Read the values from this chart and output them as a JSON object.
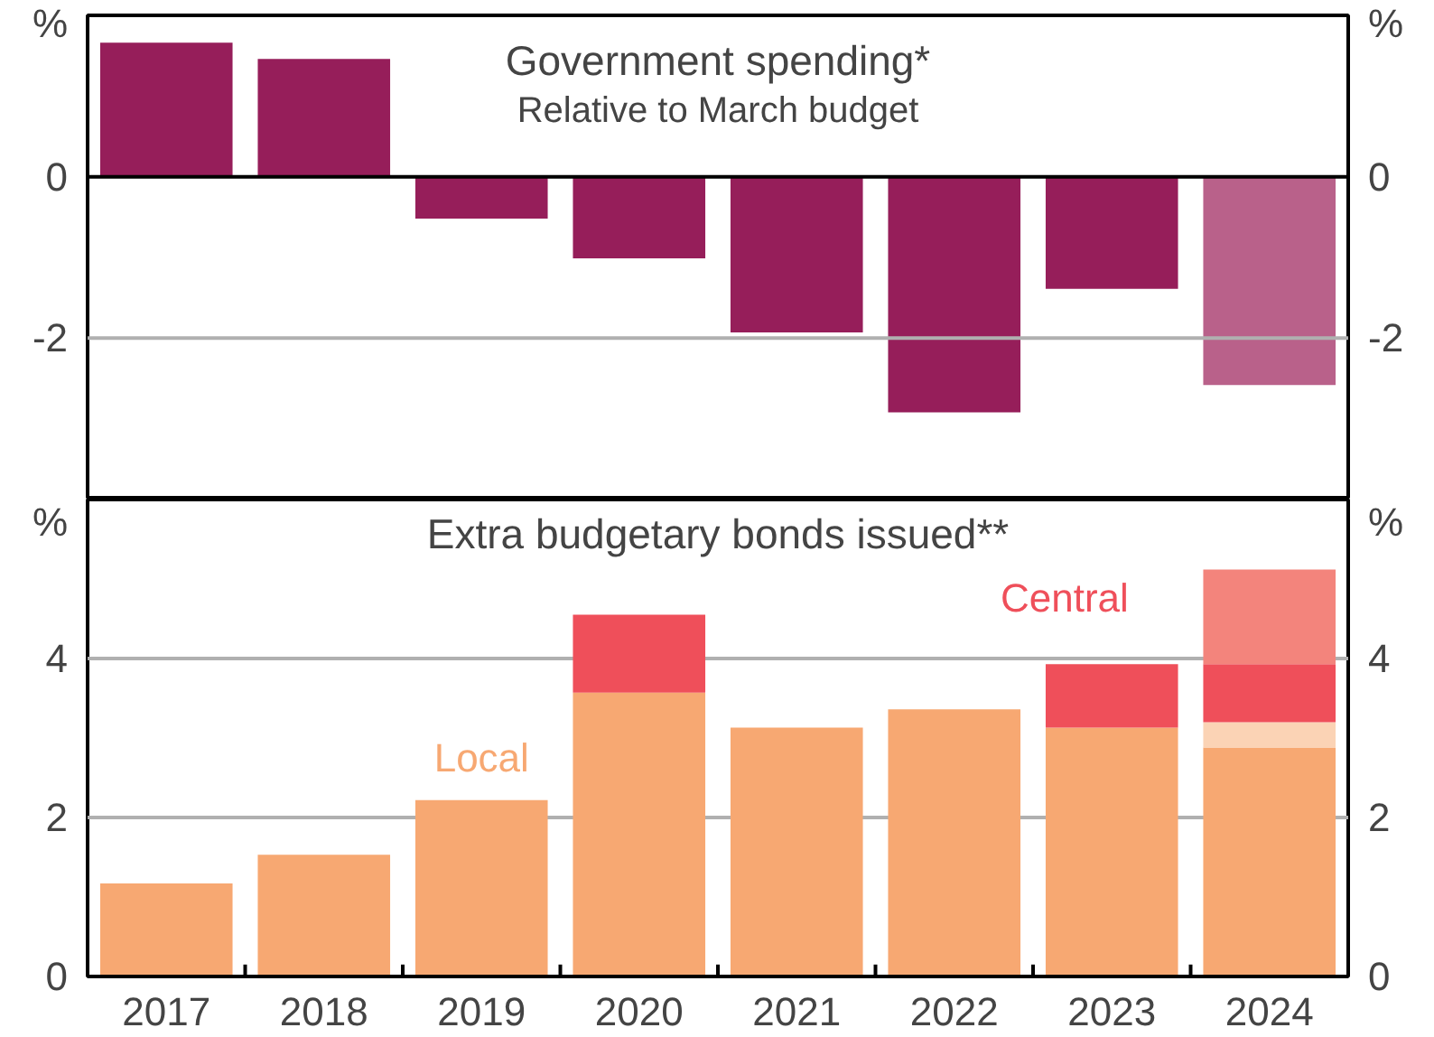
{
  "chart_data": [
    {
      "type": "bar",
      "title": "Government spending*",
      "subtitle": "Relative to March budget",
      "categories": [
        "2017",
        "2018",
        "2019",
        "2020",
        "2021",
        "2022",
        "2023",
        "2024"
      ],
      "values": [
        1.66,
        1.46,
        -0.52,
        -1.01,
        -1.93,
        -2.92,
        -1.39,
        -2.58
      ],
      "colors": [
        "#961e5a",
        "#961e5a",
        "#961e5a",
        "#961e5a",
        "#961e5a",
        "#961e5a",
        "#961e5a",
        "#b9618a"
      ],
      "ylim": [
        -4,
        2
      ],
      "yticks": [
        -2,
        0,
        {
          "value": 2,
          "label": "%"
        }
      ],
      "y2lim": [
        -4,
        2
      ],
      "y2ticks": [
        -2,
        0,
        {
          "value": 2,
          "label": "%"
        }
      ],
      "ref_lines": [
        {
          "axis": "y",
          "value": -2,
          "color": "#b0b0b0"
        }
      ],
      "tick_labels": "y"
    },
    {
      "type": "bar",
      "title": "Extra budgetary bonds issued**",
      "stacked": true,
      "categories": [
        "2017",
        "2018",
        "2019",
        "2020",
        "2021",
        "2022",
        "2023",
        "2024"
      ],
      "series": [
        {
          "name": "Local",
          "color": "#f7a872",
          "values": [
            1.17,
            1.53,
            2.22,
            3.57,
            3.13,
            3.36,
            3.13,
            2.88
          ]
        },
        {
          "color": "#fbd3b5",
          "values": [
            null,
            null,
            null,
            null,
            null,
            null,
            null,
            0.32
          ]
        },
        {
          "name": "Central",
          "color": "#ef4f5a",
          "values": [
            null,
            null,
            null,
            0.98,
            null,
            null,
            0.8,
            0.73
          ]
        },
        {
          "color": "#f3847c",
          "values": [
            null,
            null,
            null,
            null,
            null,
            null,
            null,
            1.19
          ]
        }
      ],
      "ylim": [
        0,
        6
      ],
      "yticks": [
        0,
        2,
        4,
        {
          "value": 6,
          "label": "%"
        }
      ],
      "y2lim": [
        0,
        6
      ],
      "y2ticks": [
        0,
        2,
        4,
        {
          "value": 6,
          "label": "%"
        }
      ],
      "grid": "y"
    }
  ]
}
